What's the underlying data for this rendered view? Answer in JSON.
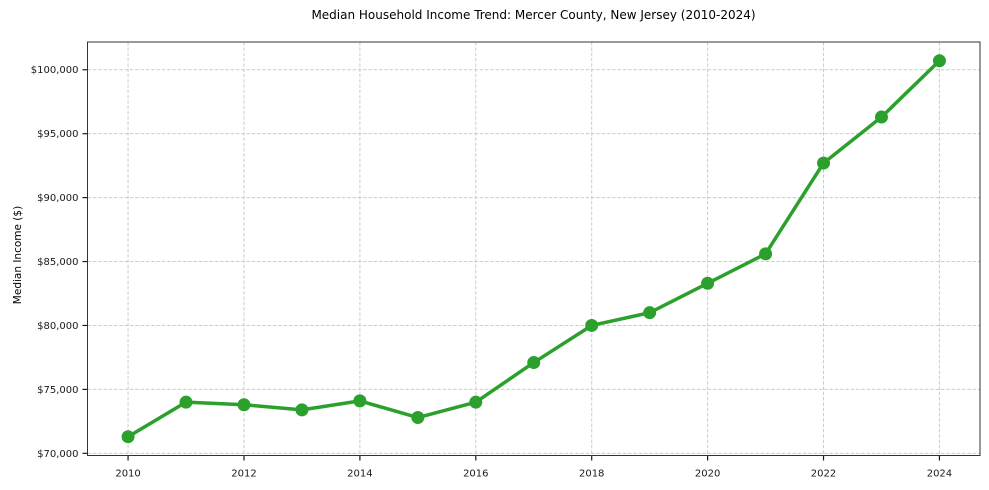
{
  "figure": {
    "background": "#ffffff"
  },
  "chart_data": {
    "type": "line",
    "title": "Median Household Income Trend: Mercer County, New Jersey (2010-2024)",
    "xlabel": "",
    "ylabel": "Median Income ($)",
    "x": [
      2010,
      2011,
      2012,
      2013,
      2014,
      2015,
      2016,
      2017,
      2018,
      2019,
      2020,
      2021,
      2022,
      2023,
      2024
    ],
    "values": [
      71300,
      74000,
      73800,
      73400,
      74100,
      72800,
      74000,
      77100,
      80000,
      81000,
      83300,
      85600,
      92700,
      96300,
      100700
    ],
    "xlim": [
      2009.3,
      2024.7
    ],
    "ylim": [
      69830,
      102170
    ],
    "xticks": {
      "values": [
        2010,
        2012,
        2014,
        2016,
        2018,
        2020,
        2022,
        2024
      ],
      "labels": [
        "2010",
        "2012",
        "2014",
        "2016",
        "2018",
        "2020",
        "2022",
        "2024"
      ]
    },
    "yticks": {
      "values": [
        70000,
        75000,
        80000,
        85000,
        90000,
        95000,
        100000
      ],
      "labels": [
        "$70,000",
        "$75,000",
        "$80,000",
        "$85,000",
        "$90,000",
        "$95,000",
        "$100,000"
      ]
    },
    "grid": true,
    "legend_position": "none",
    "line_color": "#2ca02c",
    "marker": "circle",
    "marker_radius": 6.5,
    "line_width": 3.5,
    "grid_color": "#cccccc",
    "spine_color": "#333333",
    "tick_color": "#1a1a1a"
  }
}
